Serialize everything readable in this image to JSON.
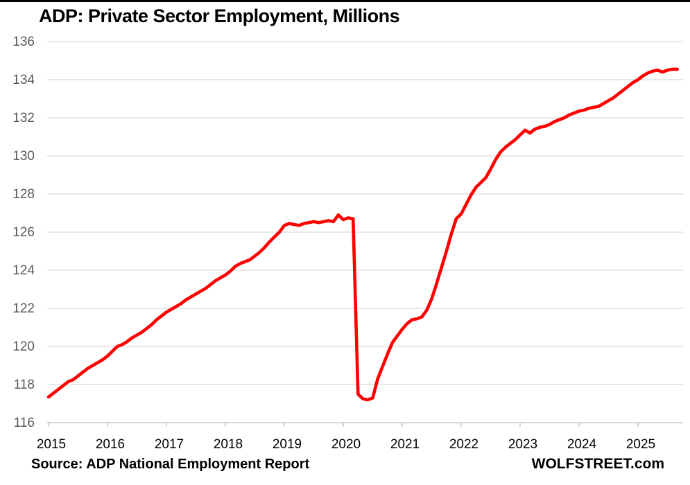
{
  "chart": {
    "title": "ADP: Private Sector Employment, Millions",
    "source": "Source: ADP National Employment Report",
    "branding": "WOLFSTREET.com",
    "chart_data": {
      "type": "line",
      "title": "ADP: Private Sector Employment, Millions",
      "series_name": "Private sector employment, millions",
      "frequency": "monthly",
      "x_start": "2015-01",
      "x_end": "2025-09",
      "values": [
        117.35,
        117.55,
        117.75,
        117.95,
        118.15,
        118.25,
        118.45,
        118.65,
        118.85,
        119.0,
        119.15,
        119.3,
        119.5,
        119.75,
        120.0,
        120.1,
        120.25,
        120.45,
        120.6,
        120.75,
        120.95,
        121.15,
        121.4,
        121.6,
        121.8,
        121.95,
        122.1,
        122.25,
        122.45,
        122.6,
        122.75,
        122.9,
        123.05,
        123.25,
        123.45,
        123.6,
        123.75,
        123.95,
        124.2,
        124.35,
        124.45,
        124.55,
        124.75,
        124.95,
        125.2,
        125.5,
        125.75,
        126.0,
        126.35,
        126.45,
        126.4,
        126.35,
        126.45,
        126.5,
        126.55,
        126.5,
        126.55,
        126.6,
        126.55,
        126.9,
        126.65,
        126.75,
        126.7,
        117.5,
        117.25,
        117.2,
        117.3,
        118.3,
        118.95,
        119.6,
        120.2,
        120.55,
        120.9,
        121.2,
        121.4,
        121.45,
        121.55,
        121.9,
        122.5,
        123.3,
        124.15,
        125.0,
        125.9,
        126.7,
        126.95,
        127.45,
        127.95,
        128.35,
        128.6,
        128.85,
        129.3,
        129.8,
        130.2,
        130.45,
        130.65,
        130.85,
        131.1,
        131.35,
        131.2,
        131.4,
        131.5,
        131.55,
        131.65,
        131.8,
        131.9,
        132.0,
        132.15,
        132.25,
        132.35,
        132.4,
        132.5,
        132.55,
        132.6,
        132.75,
        132.9,
        133.05,
        133.25,
        133.45,
        133.65,
        133.85,
        134.0,
        134.2,
        134.35,
        134.45,
        134.5,
        134.4,
        134.5,
        134.55,
        134.55
      ],
      "x_tick_labels": [
        "2015",
        "2016",
        "2017",
        "2018",
        "2019",
        "2020",
        "2021",
        "2022",
        "2023",
        "2024",
        "2025"
      ],
      "y_ticks": [
        116,
        118,
        120,
        122,
        124,
        126,
        128,
        130,
        132,
        134,
        136
      ],
      "ylim": [
        116,
        136
      ],
      "xlabel": "",
      "ylabel": "",
      "grid": "horizontal",
      "legend": "none",
      "line_color": "#ff0000",
      "gridline_color": "#d9d9d9",
      "axis_line_color": "#bfbfbf",
      "y_label_color": "#595959",
      "x_label_color": "#000000"
    }
  }
}
